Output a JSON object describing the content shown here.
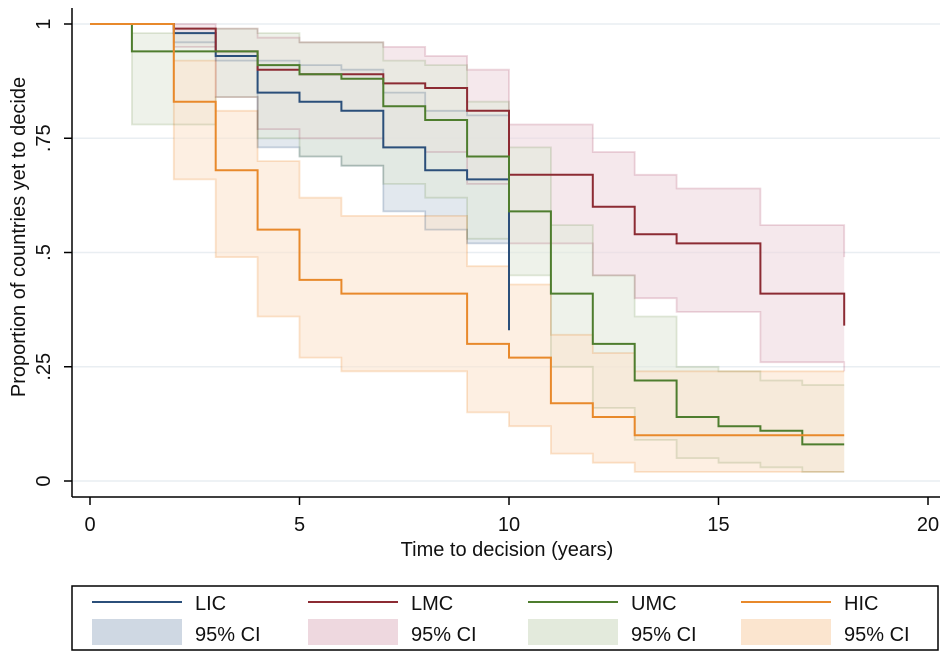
{
  "chart_data": {
    "type": "line",
    "subtype": "kaplan-meier step",
    "xlabel": "Time to decision (years)",
    "ylabel": "Proportion of countries yet to decide",
    "xlim": [
      0,
      20
    ],
    "ylim": [
      0,
      1
    ],
    "x_ticks": [
      "0",
      "5",
      "10",
      "15",
      "20"
    ],
    "y_ticks": [
      "0",
      ".25",
      ".5",
      ".75",
      "1"
    ],
    "grid": "horizontal",
    "legend_position": "bottom",
    "series": [
      {
        "name": "LIC",
        "color": "#2b4f7a",
        "steps": [
          [
            0,
            1
          ],
          [
            2,
            0.98
          ],
          [
            3,
            0.93
          ],
          [
            4,
            0.85
          ],
          [
            5,
            0.83
          ],
          [
            6,
            0.81
          ],
          [
            7,
            0.73
          ],
          [
            8,
            0.68
          ],
          [
            9,
            0.66
          ],
          [
            10,
            0.33
          ]
        ],
        "ci_label": "95% CI",
        "ci_color": "#cfd8e3",
        "ci_lower": [
          [
            0,
            1
          ],
          [
            2,
            0.96
          ],
          [
            3,
            0.92
          ],
          [
            4,
            0.73
          ],
          [
            5,
            0.71
          ],
          [
            6,
            0.69
          ],
          [
            7,
            0.59
          ],
          [
            8,
            0.55
          ],
          [
            9,
            0.52
          ],
          [
            10,
            0.51
          ]
        ],
        "ci_upper": [
          [
            0,
            1
          ],
          [
            2,
            0.99
          ],
          [
            3,
            0.94
          ],
          [
            4,
            0.92
          ],
          [
            5,
            0.91
          ],
          [
            6,
            0.9
          ],
          [
            7,
            0.85
          ],
          [
            8,
            0.81
          ],
          [
            9,
            0.8
          ],
          [
            10,
            0.8
          ]
        ]
      },
      {
        "name": "LMC",
        "color": "#8c2b33",
        "steps": [
          [
            0,
            1
          ],
          [
            2,
            0.99
          ],
          [
            3,
            0.94
          ],
          [
            4,
            0.9
          ],
          [
            5,
            0.89
          ],
          [
            7,
            0.87
          ],
          [
            8,
            0.86
          ],
          [
            9,
            0.81
          ],
          [
            10,
            0.67
          ],
          [
            12,
            0.6
          ],
          [
            13,
            0.54
          ],
          [
            14,
            0.52
          ],
          [
            16,
            0.41
          ],
          [
            18,
            0.34
          ]
        ],
        "ci_label": "95% CI",
        "ci_color": "#eed8df",
        "ci_lower": [
          [
            0,
            1
          ],
          [
            2,
            0.95
          ],
          [
            3,
            0.84
          ],
          [
            4,
            0.77
          ],
          [
            5,
            0.75
          ],
          [
            7,
            0.73
          ],
          [
            8,
            0.72
          ],
          [
            9,
            0.65
          ],
          [
            10,
            0.52
          ],
          [
            12,
            0.45
          ],
          [
            13,
            0.4
          ],
          [
            14,
            0.37
          ],
          [
            16,
            0.26
          ],
          [
            18,
            0.24
          ]
        ],
        "ci_upper": [
          [
            0,
            1
          ],
          [
            2,
            1
          ],
          [
            3,
            0.99
          ],
          [
            4,
            0.97
          ],
          [
            5,
            0.96
          ],
          [
            7,
            0.95
          ],
          [
            8,
            0.93
          ],
          [
            9,
            0.9
          ],
          [
            10,
            0.78
          ],
          [
            12,
            0.72
          ],
          [
            13,
            0.67
          ],
          [
            14,
            0.64
          ],
          [
            16,
            0.56
          ],
          [
            18,
            0.49
          ]
        ]
      },
      {
        "name": "UMC",
        "color": "#4e7d2e",
        "steps": [
          [
            0,
            1
          ],
          [
            1,
            0.94
          ],
          [
            3,
            0.94
          ],
          [
            4,
            0.91
          ],
          [
            5,
            0.89
          ],
          [
            6,
            0.88
          ],
          [
            7,
            0.82
          ],
          [
            8,
            0.79
          ],
          [
            9,
            0.71
          ],
          [
            10,
            0.59
          ],
          [
            11,
            0.41
          ],
          [
            12,
            0.3
          ],
          [
            13,
            0.22
          ],
          [
            14,
            0.14
          ],
          [
            15,
            0.12
          ],
          [
            16,
            0.11
          ],
          [
            17,
            0.08
          ],
          [
            18,
            0.08
          ]
        ],
        "ci_label": "95% CI",
        "ci_color": "#e3eadc",
        "ci_lower": [
          [
            0,
            1
          ],
          [
            1,
            0.78
          ],
          [
            3,
            0.84
          ],
          [
            4,
            0.75
          ],
          [
            5,
            0.71
          ],
          [
            6,
            0.69
          ],
          [
            7,
            0.65
          ],
          [
            8,
            0.62
          ],
          [
            9,
            0.53
          ],
          [
            10,
            0.45
          ],
          [
            11,
            0.25
          ],
          [
            12,
            0.16
          ],
          [
            13,
            0.09
          ],
          [
            14,
            0.05
          ],
          [
            15,
            0.04
          ],
          [
            16,
            0.03
          ],
          [
            17,
            0.02
          ],
          [
            18,
            0.02
          ]
        ],
        "ci_upper": [
          [
            0,
            1
          ],
          [
            1,
            0.98
          ],
          [
            3,
            0.99
          ],
          [
            4,
            0.98
          ],
          [
            5,
            0.96
          ],
          [
            6,
            0.96
          ],
          [
            7,
            0.92
          ],
          [
            8,
            0.91
          ],
          [
            9,
            0.83
          ],
          [
            10,
            0.73
          ],
          [
            11,
            0.56
          ],
          [
            12,
            0.45
          ],
          [
            13,
            0.36
          ],
          [
            14,
            0.25
          ],
          [
            15,
            0.24
          ],
          [
            16,
            0.22
          ],
          [
            17,
            0.21
          ],
          [
            18,
            0.21
          ]
        ]
      },
      {
        "name": "HIC",
        "color": "#e8892b",
        "steps": [
          [
            0,
            1
          ],
          [
            2,
            0.83
          ],
          [
            3,
            0.68
          ],
          [
            4,
            0.55
          ],
          [
            5,
            0.44
          ],
          [
            6,
            0.41
          ],
          [
            9,
            0.3
          ],
          [
            10,
            0.27
          ],
          [
            11,
            0.17
          ],
          [
            12,
            0.14
          ],
          [
            13,
            0.1
          ],
          [
            18,
            0.1
          ]
        ],
        "ci_label": "95% CI",
        "ci_color": "#fbe5cf",
        "ci_lower": [
          [
            0,
            1
          ],
          [
            2,
            0.66
          ],
          [
            3,
            0.49
          ],
          [
            4,
            0.36
          ],
          [
            5,
            0.27
          ],
          [
            6,
            0.24
          ],
          [
            9,
            0.15
          ],
          [
            10,
            0.12
          ],
          [
            11,
            0.06
          ],
          [
            12,
            0.04
          ],
          [
            13,
            0.02
          ],
          [
            18,
            0.02
          ]
        ],
        "ci_upper": [
          [
            0,
            1
          ],
          [
            2,
            0.92
          ],
          [
            3,
            0.81
          ],
          [
            4,
            0.7
          ],
          [
            5,
            0.62
          ],
          [
            6,
            0.58
          ],
          [
            9,
            0.47
          ],
          [
            10,
            0.43
          ],
          [
            11,
            0.32
          ],
          [
            12,
            0.28
          ],
          [
            13,
            0.24
          ],
          [
            18,
            0.24
          ]
        ]
      }
    ]
  }
}
